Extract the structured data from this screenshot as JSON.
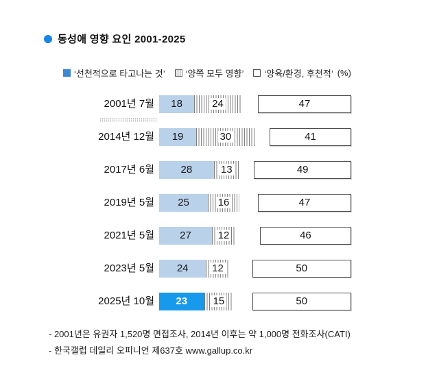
{
  "title": "동성애 영향 요인 2001-2025",
  "legend": {
    "items": [
      {
        "label": "‘선천적으로 타고나는 것’",
        "swatch": "solid-blue-square"
      },
      {
        "label": "‘양쪽 모두 영향’",
        "swatch": "striped-square"
      },
      {
        "label": "‘양육/환경, 후천적’",
        "swatch": "outline-square"
      }
    ],
    "suffix": "(%)"
  },
  "chart_data": {
    "type": "bar",
    "variant": "horizontal-stacked",
    "unit": "%",
    "categories": [
      "2001년 7월",
      "2014년 12월",
      "2017년 6월",
      "2019년 5월",
      "2021년 5월",
      "2023년 5월",
      "2025년 10월"
    ],
    "series": [
      {
        "name": "선천적으로 타고나는 것",
        "values": [
          18,
          19,
          28,
          25,
          27,
          24,
          23
        ]
      },
      {
        "name": "양쪽 모두 영향",
        "values": [
          24,
          30,
          13,
          16,
          12,
          12,
          15
        ]
      },
      {
        "name": "양육/환경, 후천적",
        "values": [
          47,
          41,
          49,
          47,
          46,
          50,
          50
        ]
      }
    ],
    "highlight_category": "2025년 10월",
    "legend_position": "top",
    "time_break_after": "2001년 7월"
  },
  "footnotes": [
    "- 2001년은 유권자 1,520명 면접조사, 2014년 이후는 약 1,000명 전화조사(CATI)",
    "- 한국갤럽 데일리 오피니언 제637호 www.gallup.co.kr"
  ],
  "colors": {
    "accent_bullet": "#1b84e7",
    "bar_blue": "#bad1ea",
    "bar_blue_highlight": "#1799ec",
    "legend_blue": "#3f86cf",
    "stripe_gray": "#7d7d7d",
    "box_border": "#4d4d4d"
  }
}
